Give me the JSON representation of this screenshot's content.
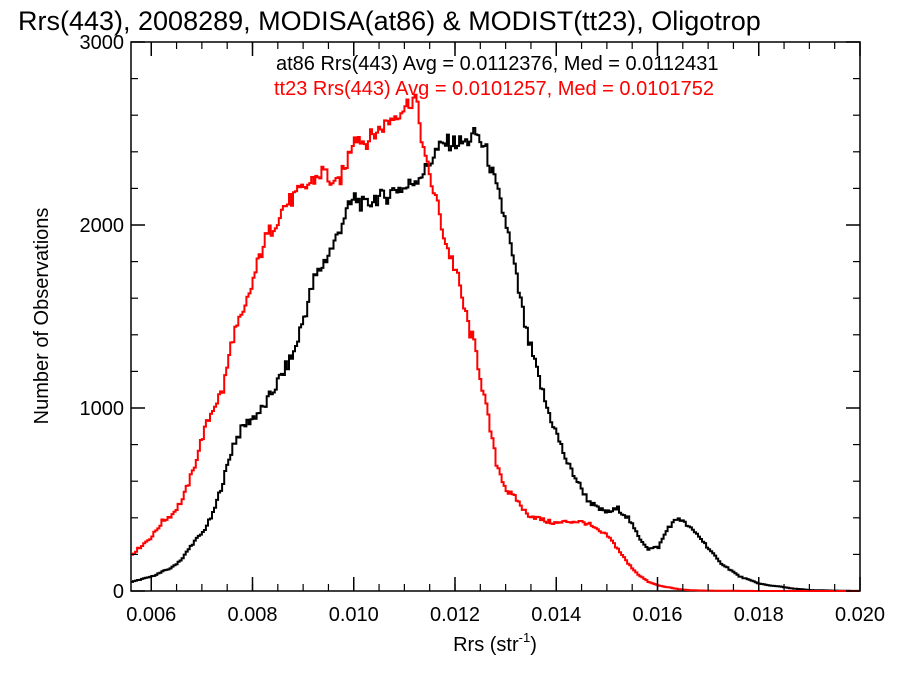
{
  "chart_data": {
    "type": "line",
    "title": "Rrs(443), 2008289, MODISA(at86) & MODIST(tt23), Oligotrop",
    "xlabel": "Rrs (str",
    "xlabel_sup": "-1",
    "xlabel_close": ")",
    "ylabel": "Number of Observations",
    "xlim": [
      0.0056,
      0.02
    ],
    "ylim": [
      0,
      3000
    ],
    "xticks": [
      "0.006",
      "0.008",
      "0.010",
      "0.012",
      "0.014",
      "0.016",
      "0.018",
      "0.020"
    ],
    "xtick_values": [
      0.006,
      0.008,
      0.01,
      0.012,
      0.014,
      0.016,
      0.018,
      0.02
    ],
    "yticks": [
      "0",
      "1000",
      "2000",
      "3000"
    ],
    "ytick_values": [
      0,
      1000,
      2000,
      3000
    ],
    "grid": false,
    "legend_position": "top-right",
    "series": [
      {
        "name": "at86",
        "color": "#000000",
        "legend": "at86 Rrs(443) Avg = 0.0112376, Med = 0.0112431",
        "x": [
          0.0056,
          0.006,
          0.0064,
          0.0066,
          0.0068,
          0.007,
          0.0072,
          0.0074,
          0.0076,
          0.0078,
          0.008,
          0.0082,
          0.0084,
          0.0086,
          0.0088,
          0.009,
          0.0092,
          0.0094,
          0.0096,
          0.0098,
          0.01,
          0.0102,
          0.0104,
          0.0106,
          0.0108,
          0.011,
          0.0112,
          0.0114,
          0.0116,
          0.0118,
          0.012,
          0.0122,
          0.0124,
          0.0126,
          0.0128,
          0.013,
          0.0132,
          0.0134,
          0.0136,
          0.0138,
          0.014,
          0.0142,
          0.0144,
          0.0146,
          0.0148,
          0.015,
          0.0152,
          0.0154,
          0.0156,
          0.0158,
          0.016,
          0.0162,
          0.0164,
          0.0166,
          0.0168,
          0.017,
          0.0172,
          0.0174,
          0.0176,
          0.0178,
          0.018,
          0.0182,
          0.0184,
          0.0186,
          0.0188,
          0.019,
          0.0195,
          0.02
        ],
        "y": [
          50,
          80,
          130,
          180,
          260,
          320,
          420,
          600,
          800,
          900,
          950,
          1000,
          1100,
          1200,
          1300,
          1500,
          1700,
          1800,
          1900,
          2050,
          2150,
          2100,
          2150,
          2150,
          2200,
          2200,
          2250,
          2300,
          2400,
          2450,
          2450,
          2450,
          2500,
          2400,
          2200,
          2000,
          1700,
          1400,
          1200,
          1000,
          850,
          700,
          600,
          500,
          450,
          430,
          450,
          400,
          300,
          230,
          240,
          350,
          400,
          350,
          300,
          230,
          160,
          120,
          80,
          60,
          40,
          30,
          25,
          15,
          10,
          5,
          2,
          0
        ]
      },
      {
        "name": "tt23",
        "color": "#ff0000",
        "legend": "tt23 Rrs(443) Avg = 0.0101257, Med = 0.0101752",
        "x": [
          0.0056,
          0.0058,
          0.006,
          0.0062,
          0.0064,
          0.0066,
          0.0068,
          0.007,
          0.0072,
          0.0074,
          0.0076,
          0.0078,
          0.008,
          0.0082,
          0.0084,
          0.0086,
          0.0088,
          0.009,
          0.0092,
          0.0094,
          0.0096,
          0.0098,
          0.01,
          0.0102,
          0.0104,
          0.0106,
          0.0108,
          0.011,
          0.0112,
          0.0114,
          0.0116,
          0.0118,
          0.012,
          0.0122,
          0.0124,
          0.0126,
          0.0128,
          0.013,
          0.0132,
          0.0134,
          0.0136,
          0.0138,
          0.014,
          0.0142,
          0.0144,
          0.0146,
          0.0148,
          0.015,
          0.0152,
          0.0154,
          0.0156,
          0.0158,
          0.016,
          0.0162,
          0.0164,
          0.0166,
          0.0168,
          0.017,
          0.0175,
          0.018,
          0.019,
          0.02
        ],
        "y": [
          200,
          250,
          300,
          380,
          420,
          500,
          650,
          850,
          1000,
          1100,
          1400,
          1500,
          1700,
          1900,
          2000,
          2100,
          2150,
          2200,
          2250,
          2300,
          2200,
          2300,
          2500,
          2450,
          2500,
          2550,
          2600,
          2650,
          2700,
          2350,
          2150,
          1900,
          1750,
          1500,
          1300,
          1000,
          700,
          550,
          500,
          420,
          400,
          380,
          370,
          380,
          380,
          370,
          330,
          300,
          230,
          150,
          90,
          50,
          30,
          20,
          10,
          5,
          3,
          2,
          1,
          0,
          0,
          0
        ]
      }
    ]
  }
}
